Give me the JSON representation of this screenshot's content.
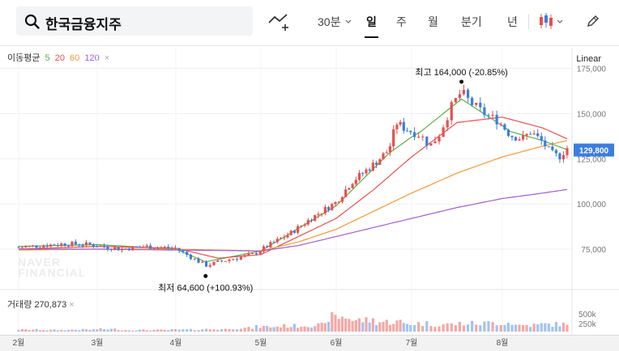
{
  "header": {
    "search_query": "한국금융지주",
    "intervals": [
      "30분",
      "일",
      "주",
      "월",
      "분기",
      "년"
    ],
    "active_interval": "일"
  },
  "ma_legend": {
    "title": "이동평균",
    "items": [
      {
        "label": "5",
        "color": "#5ab043"
      },
      {
        "label": "20",
        "color": "#e8504d"
      },
      {
        "label": "60",
        "color": "#f09a39"
      },
      {
        "label": "120",
        "color": "#a45ed0"
      }
    ],
    "close_symbol": "×"
  },
  "scale_mode": "Linear",
  "volume_legend": {
    "title": "거래량",
    "value": "270,873"
  },
  "watermark": [
    "NAVER",
    "FINANCIAL"
  ],
  "colors": {
    "up": "#e8504d",
    "down": "#3b7de0",
    "price_tag": "#3b7de0"
  },
  "chart_data": {
    "type": "candlestick",
    "y_ticks": [
      175000,
      150000,
      125000,
      100000,
      75000
    ],
    "y_tick_labels": [
      "175,000",
      "150,000",
      "125,000",
      "100,000",
      "75,000"
    ],
    "ylim": [
      54000,
      177000
    ],
    "x_month_labels": [
      "2월",
      "3월",
      "4월",
      "5월",
      "6월",
      "7월",
      "8월"
    ],
    "current_price": 129800,
    "current_price_label": "129,800",
    "high_annotation": {
      "label": "최고",
      "value_text": "164,000 (-20.85%)",
      "price": 164000,
      "month_index": 5.55
    },
    "low_annotation": {
      "label": "최저",
      "value_text": "64,600 (+100.93%)",
      "price": 64600,
      "month_index": 2.35
    },
    "volume_ticks": [
      "500k",
      "250k"
    ],
    "price_path": [
      [
        0,
        76000
      ],
      [
        0.3,
        77000
      ],
      [
        0.6,
        78000
      ],
      [
        0.9,
        77500
      ],
      [
        1.0,
        77000
      ],
      [
        1.3,
        75000
      ],
      [
        1.6,
        76500
      ],
      [
        2.0,
        75500
      ],
      [
        2.2,
        70000
      ],
      [
        2.35,
        66000
      ],
      [
        2.6,
        69000
      ],
      [
        2.9,
        72000
      ],
      [
        3.1,
        77000
      ],
      [
        3.4,
        84000
      ],
      [
        3.7,
        93000
      ],
      [
        4.0,
        101000
      ],
      [
        4.2,
        112000
      ],
      [
        4.5,
        122000
      ],
      [
        4.7,
        130000
      ],
      [
        4.8,
        145000
      ],
      [
        4.9,
        142000
      ],
      [
        5.1,
        138000
      ],
      [
        5.2,
        132000
      ],
      [
        5.3,
        138000
      ],
      [
        5.45,
        155000
      ],
      [
        5.55,
        162000
      ],
      [
        5.65,
        156000
      ],
      [
        5.8,
        150000
      ],
      [
        5.95,
        146000
      ],
      [
        6.1,
        138000
      ],
      [
        6.25,
        136000
      ],
      [
        6.35,
        140000
      ],
      [
        6.5,
        134000
      ],
      [
        6.6,
        128000
      ],
      [
        6.7,
        126000
      ],
      [
        6.8,
        131000
      ]
    ],
    "ma": {
      "5": [
        [
          0,
          76500
        ],
        [
          1.0,
          77500
        ],
        [
          2.0,
          75000
        ],
        [
          2.35,
          68000
        ],
        [
          3.0,
          74000
        ],
        [
          4.0,
          99000
        ],
        [
          4.7,
          128000
        ],
        [
          5.1,
          140000
        ],
        [
          5.55,
          158000
        ],
        [
          6.1,
          140000
        ],
        [
          6.5,
          135000
        ],
        [
          6.8,
          130000
        ]
      ],
      "20": [
        [
          0,
          75000
        ],
        [
          1.0,
          76500
        ],
        [
          2.0,
          75500
        ],
        [
          2.5,
          70000
        ],
        [
          3.0,
          72000
        ],
        [
          4.0,
          92000
        ],
        [
          4.5,
          108000
        ],
        [
          5.0,
          126000
        ],
        [
          5.5,
          145000
        ],
        [
          6.0,
          148000
        ],
        [
          6.5,
          142000
        ],
        [
          6.8,
          136000
        ]
      ],
      "60": [
        [
          0,
          74500
        ],
        [
          1.0,
          75000
        ],
        [
          2.0,
          75000
        ],
        [
          3.0,
          74000
        ],
        [
          3.5,
          79000
        ],
        [
          4.0,
          86000
        ],
        [
          4.5,
          96000
        ],
        [
          5.0,
          106000
        ],
        [
          5.5,
          117000
        ],
        [
          6.0,
          126000
        ],
        [
          6.5,
          132000
        ],
        [
          6.8,
          135000
        ]
      ],
      "120": [
        [
          0,
          75000
        ],
        [
          1.0,
          75000
        ],
        [
          2.0,
          74500
        ],
        [
          3.0,
          74000
        ],
        [
          3.5,
          77000
        ],
        [
          4.0,
          82000
        ],
        [
          4.5,
          87000
        ],
        [
          5.0,
          92000
        ],
        [
          5.5,
          98000
        ],
        [
          6.0,
          103000
        ],
        [
          6.5,
          106000
        ],
        [
          6.8,
          108000
        ]
      ]
    },
    "volume_level": [
      0.12,
      0.1,
      0.12,
      0.15,
      0.1,
      0.1,
      0.12,
      0.15,
      0.22,
      0.3,
      0.35,
      0.4,
      0.9,
      0.7,
      0.6,
      0.5,
      0.45,
      0.5,
      0.55,
      0.4,
      0.45,
      0.6
    ]
  }
}
